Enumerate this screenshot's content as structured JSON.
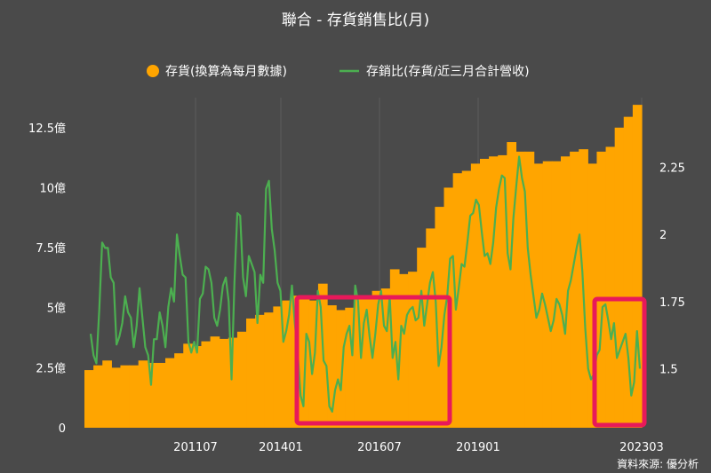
{
  "chart_data": {
    "type": "bar+line",
    "title": "聯合 - 存貨銷售比(月)",
    "source": "資料來源: 優分析",
    "colors": {
      "bar": "#ffa500",
      "line": "#4caf50",
      "highlight": "#e8195a",
      "background": "#4a4a4a",
      "grid": "#5c5c5c"
    },
    "x_ticks": [
      "201107",
      "201401",
      "201607",
      "201901",
      "202303"
    ],
    "y_left": {
      "ticks": [
        "0",
        "2.5億",
        "5億",
        "7.5億",
        "10億",
        "12.5億"
      ],
      "min": 0,
      "max": 13.75
    },
    "y_right": {
      "ticks": [
        "1.5",
        "1.75",
        "2",
        "2.25"
      ],
      "min": 1.28,
      "max": 2.51
    },
    "legend_position": "top-center",
    "series": [
      {
        "name": "存貨(換算為每月數據)",
        "type": "bar",
        "axis": "left",
        "values": [
          2.4,
          2.6,
          2.8,
          2.5,
          2.6,
          2.6,
          2.8,
          2.7,
          2.7,
          2.9,
          3.1,
          3.5,
          3.4,
          3.6,
          3.8,
          3.7,
          3.75,
          4.0,
          4.55,
          4.7,
          4.8,
          5.05,
          5.3,
          5.5,
          5.4,
          5.3,
          6.0,
          5.1,
          4.9,
          5.0,
          5.4,
          5.5,
          5.7,
          5.8,
          6.6,
          6.4,
          6.5,
          7.5,
          8.3,
          9.2,
          10.0,
          10.6,
          10.7,
          11.0,
          11.2,
          11.3,
          11.35,
          11.9,
          11.5,
          11.5,
          11.0,
          11.1,
          11.1,
          11.3,
          11.5,
          11.6,
          11.0,
          11.5,
          11.7,
          12.5,
          12.95,
          13.45
        ]
      },
      {
        "name": "存銷比(存貨/近三月合計營收)",
        "type": "line",
        "axis": "right",
        "values": [
          1.63,
          1.55,
          1.52,
          1.72,
          1.97,
          1.95,
          1.95,
          1.84,
          1.82,
          1.59,
          1.62,
          1.67,
          1.77,
          1.71,
          1.69,
          1.58,
          1.66,
          1.8,
          1.69,
          1.58,
          1.55,
          1.44,
          1.61,
          1.61,
          1.71,
          1.66,
          1.58,
          1.73,
          1.8,
          1.75,
          2.0,
          1.92,
          1.85,
          1.84,
          1.6,
          1.56,
          1.6,
          1.56,
          1.76,
          1.78,
          1.88,
          1.87,
          1.82,
          1.69,
          1.66,
          1.72,
          1.81,
          1.84,
          1.75,
          1.46,
          1.82,
          2.08,
          2.07,
          1.84,
          1.77,
          1.92,
          1.89,
          1.86,
          1.67,
          1.85,
          1.82,
          2.17,
          2.2,
          2.02,
          1.94,
          1.82,
          1.79,
          1.6,
          1.64,
          1.7,
          1.81,
          1.67,
          1.56,
          1.4,
          1.36,
          1.63,
          1.6,
          1.48,
          1.56,
          1.79,
          1.73,
          1.53,
          1.51,
          1.36,
          1.34,
          1.42,
          1.46,
          1.42,
          1.58,
          1.63,
          1.66,
          1.55,
          1.81,
          1.75,
          1.54,
          1.67,
          1.72,
          1.62,
          1.54,
          1.63,
          1.74,
          1.79,
          1.66,
          1.64,
          1.77,
          1.54,
          1.6,
          1.46,
          1.66,
          1.63,
          1.7,
          1.72,
          1.73,
          1.68,
          1.69,
          1.79,
          1.66,
          1.74,
          1.82,
          1.86,
          1.75,
          1.51,
          1.58,
          1.7,
          1.77,
          1.91,
          1.92,
          1.72,
          1.8,
          1.89,
          1.88,
          1.97,
          2.07,
          2.08,
          2.13,
          2.11,
          2.01,
          1.92,
          1.93,
          1.89,
          1.97,
          2.1,
          2.17,
          2.22,
          2.21,
          1.93,
          1.87,
          2.06,
          2.18,
          2.29,
          2.21,
          2.16,
          1.95,
          1.85,
          1.77,
          1.69,
          1.72,
          1.78,
          1.74,
          1.69,
          1.64,
          1.68,
          1.76,
          1.74,
          1.7,
          1.63,
          1.79,
          1.83,
          1.89,
          1.95,
          2.0,
          1.86,
          1.65,
          1.5,
          1.46,
          1.48,
          1.55,
          1.57,
          1.73,
          1.74,
          1.68,
          1.61,
          1.67,
          1.54,
          1.57,
          1.6,
          1.63,
          1.54,
          1.4,
          1.45,
          1.64,
          1.5
        ]
      }
    ]
  }
}
